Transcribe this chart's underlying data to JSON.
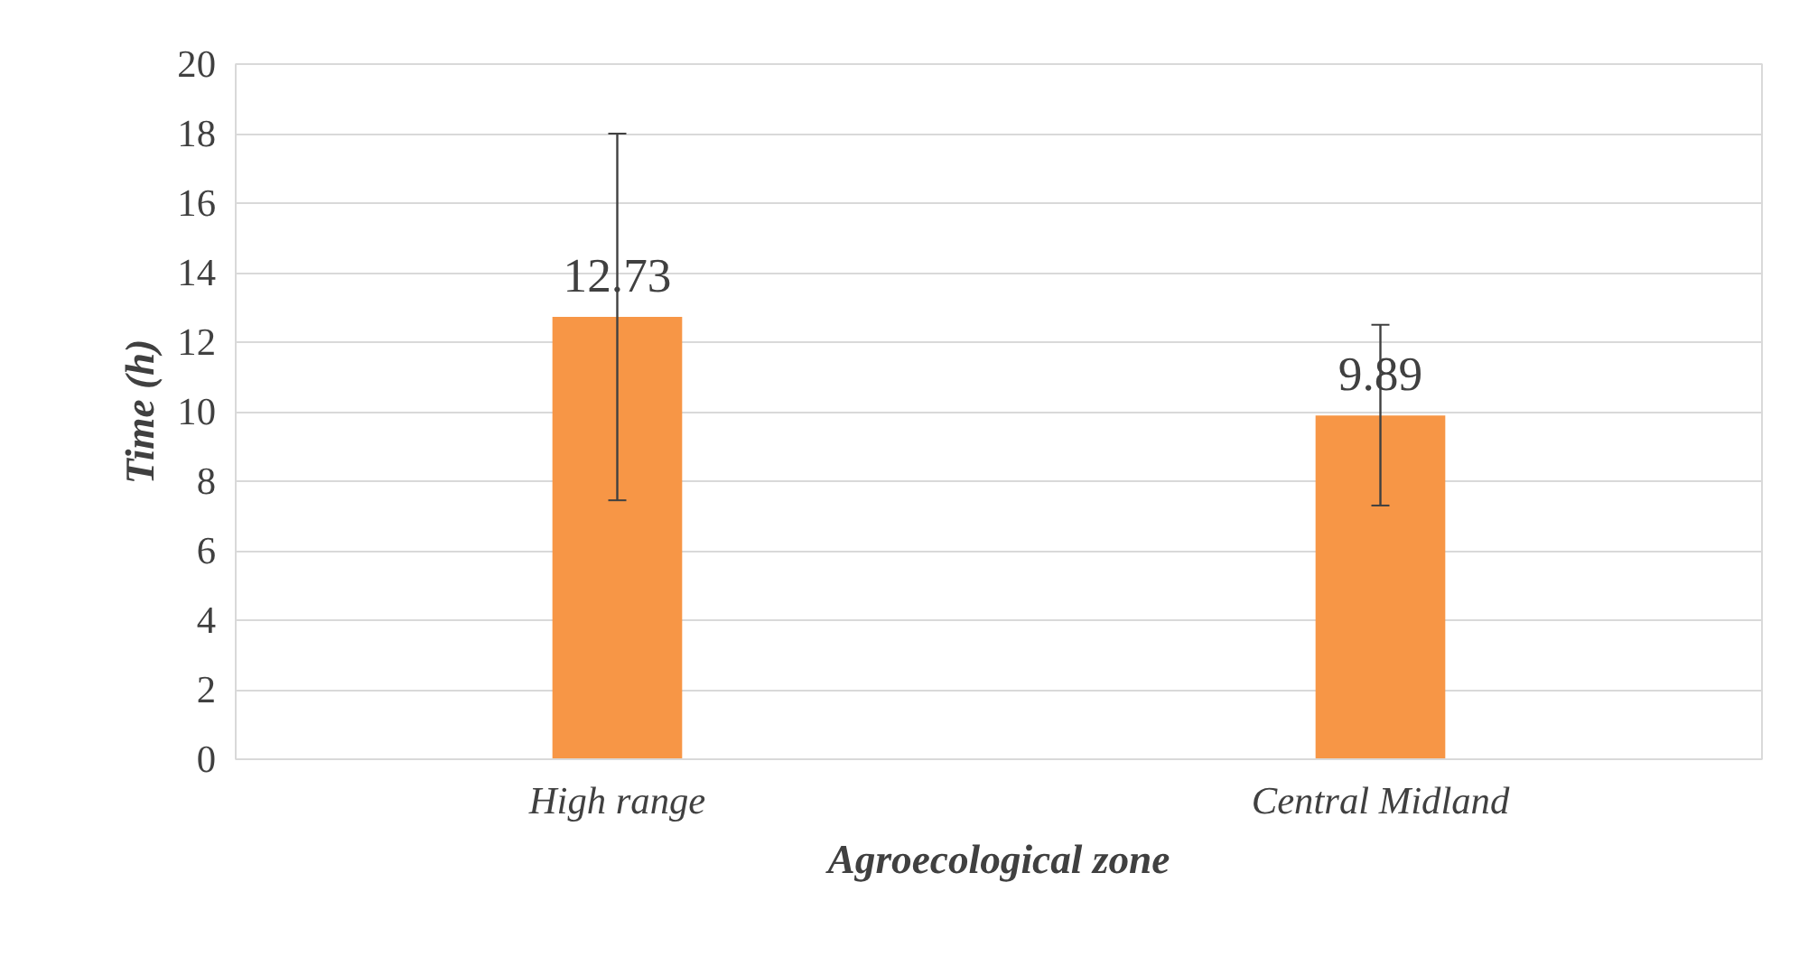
{
  "chart_data": {
    "type": "bar",
    "xlabel": "Agroecological zone",
    "ylabel": "Time (h)",
    "categories": [
      "High range",
      "Central Midland"
    ],
    "values": [
      12.73,
      9.89
    ],
    "color": "#f79646",
    "errors": [
      [
        7.45,
        18.0
      ],
      [
        7.3,
        12.5
      ]
    ],
    "data_labels": true,
    "ylim": [
      0,
      20
    ],
    "yticks": [
      0,
      2,
      4,
      6,
      8,
      10,
      12,
      14,
      16,
      18,
      20
    ],
    "grid": "y"
  }
}
